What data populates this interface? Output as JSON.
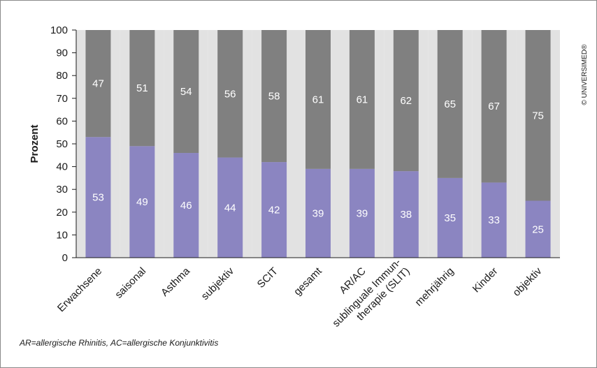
{
  "chart_data": {
    "type": "bar",
    "stacked": true,
    "normalized_to": 100,
    "ylabel": "Prozent",
    "xlabel": "",
    "ylim": [
      0,
      100
    ],
    "yticks": [
      0,
      10,
      20,
      30,
      40,
      50,
      60,
      70,
      80,
      90,
      100
    ],
    "grid": false,
    "categories": [
      "Erwachsene",
      "saisonal",
      "Asthma",
      "subjektiv",
      "SCIT",
      "gesamt",
      "AR/AC",
      "sublinguale Immun-|therapie (SLIT)",
      "mehrjährig",
      "Kinder",
      "objektiv"
    ],
    "series": [
      {
        "values": [
          53,
          49,
          46,
          44,
          42,
          39,
          39,
          38,
          35,
          33,
          25
        ],
        "color": "#8b85c1"
      },
      {
        "values": [
          47,
          51,
          54,
          56,
          58,
          61,
          61,
          62,
          65,
          67,
          75
        ],
        "color": "#808080"
      }
    ],
    "band_color": "#e2e2e2"
  },
  "footnote": "AR=allergische Rhinitis, AC=allergische Konjunktivitis",
  "copyright": "© UNIVERSIMED®"
}
